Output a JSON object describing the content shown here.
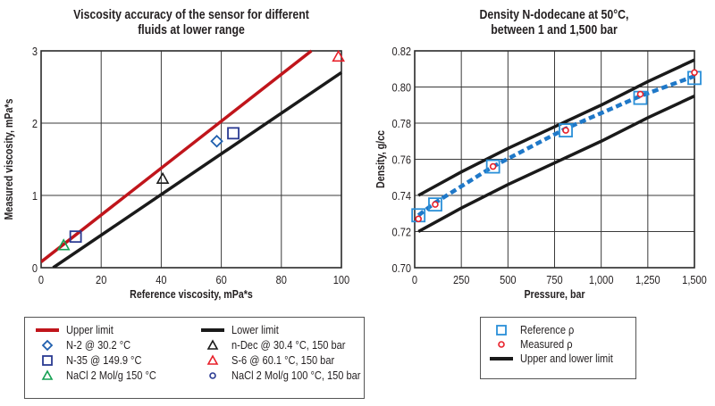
{
  "chart_data": [
    {
      "type": "scatter",
      "title": "Viscosity accuracy of the sensor for different fluids at lower range",
      "title_lines": [
        "Viscosity accuracy of the sensor for different",
        "fluids at lower range"
      ],
      "xlabel": "Reference viscosity, mPa*s",
      "ylabel": "Measured viscosity, mPa*s",
      "xlim": [
        0,
        100
      ],
      "ylim": [
        0,
        3
      ],
      "xticks": [
        "0",
        "20",
        "40",
        "60",
        "80",
        "100"
      ],
      "yticks": [
        "0",
        "1",
        "2",
        "3"
      ],
      "grid": true,
      "lines": [
        {
          "name": "Upper limit",
          "color": "#c0151b",
          "x": [
            0,
            90
          ],
          "y": [
            0.08,
            3.0
          ]
        },
        {
          "name": "Lower limit",
          "color": "#1a1a1a",
          "x": [
            4,
            100
          ],
          "y": [
            0.0,
            2.7
          ]
        }
      ],
      "series": [
        {
          "name": "N-2 @ 30.2 °C",
          "marker": "diamond",
          "color": "#1f5fae",
          "points": [
            [
              58.5,
              1.75
            ]
          ]
        },
        {
          "name": "N-35 @ 149.9 °C",
          "marker": "square",
          "color": "#2a3a92",
          "points": [
            [
              11.5,
              0.43
            ],
            [
              64,
              1.86
            ]
          ]
        },
        {
          "name": "NaCl 2 Mol/g 150 °C",
          "marker": "triangle",
          "color": "#14a052",
          "points": [
            [
              7.5,
              0.31
            ]
          ]
        },
        {
          "name": "n-Dec @ 30.4 °C, 150 bar",
          "marker": "triangle",
          "color": "#1a1a1a",
          "points": [
            [
              40.5,
              1.23
            ]
          ]
        },
        {
          "name": "S-6 @ 60.1 °C, 150 bar",
          "marker": "triangle",
          "color": "#e8202a",
          "points": [
            [
              99,
              2.92
            ]
          ]
        },
        {
          "name": "NaCl 2 Mol/g 100 °C, 150 bar",
          "marker": "circle",
          "color": "#2a3a92",
          "points": []
        }
      ],
      "legend": {
        "placement": "bottom",
        "items": [
          {
            "label": "Upper limit",
            "symbol": "line",
            "color": "#c0151b"
          },
          {
            "label": "N-2 @ 30.2 °C",
            "symbol": "diamond",
            "color": "#1f5fae"
          },
          {
            "label": "N-35 @ 149.9 °C",
            "symbol": "square",
            "color": "#2a3a92"
          },
          {
            "label": "NaCl 2 Mol/g 150 °C",
            "symbol": "triangle",
            "color": "#14a052"
          },
          {
            "label": "Lower limit",
            "symbol": "line",
            "color": "#1a1a1a"
          },
          {
            "label": "n-Dec @ 30.4 °C, 150 bar",
            "symbol": "triangle",
            "color": "#1a1a1a"
          },
          {
            "label": "S-6 @ 60.1 °C, 150 bar",
            "symbol": "triangle",
            "color": "#e8202a"
          },
          {
            "label": "NaCl 2 Mol/g 100 °C, 150 bar",
            "symbol": "circle",
            "color": "#2a3a92"
          }
        ]
      }
    },
    {
      "type": "line",
      "title": "Density N-dodecane at 50°C, between 1 and 1,500 bar",
      "title_lines": [
        "Density N-dodecane at 50°C,",
        "between 1 and 1,500 bar"
      ],
      "xlabel": "Pressure, bar",
      "ylabel": "Density, g/cc",
      "xlim": [
        0,
        1500
      ],
      "ylim": [
        0.7,
        0.82
      ],
      "xticks": [
        "0",
        "250",
        "500",
        "750",
        "1,000",
        "1,250",
        "1,500"
      ],
      "yticks": [
        "0.70",
        "0.72",
        "0.74",
        "0.76",
        "0.78",
        "0.80",
        "0.82"
      ],
      "grid": true,
      "series": [
        {
          "name": "Upper limit",
          "color": "#1a1a1a",
          "style": "solid",
          "x": [
            20,
            250,
            500,
            750,
            1000,
            1250,
            1500
          ],
          "y": [
            0.74,
            0.753,
            0.766,
            0.778,
            0.79,
            0.803,
            0.815
          ]
        },
        {
          "name": "Lower limit",
          "color": "#1a1a1a",
          "style": "solid",
          "x": [
            20,
            250,
            500,
            750,
            1000,
            1250,
            1500
          ],
          "y": [
            0.72,
            0.733,
            0.746,
            0.758,
            0.77,
            0.783,
            0.795
          ]
        },
        {
          "name": "Fit",
          "color": "#1f78c8",
          "style": "dashed",
          "x": [
            20,
            110,
            420,
            810,
            1210,
            1500
          ],
          "y": [
            0.729,
            0.736,
            0.756,
            0.777,
            0.795,
            0.806
          ]
        },
        {
          "name": "Reference ρ",
          "marker": "square",
          "color": "#2a8fd8",
          "x": [
            20,
            110,
            420,
            810,
            1210,
            1500
          ],
          "y": [
            0.729,
            0.735,
            0.756,
            0.776,
            0.794,
            0.805
          ]
        },
        {
          "name": "Measured ρ",
          "marker": "circle",
          "color": "#e8202a",
          "x": [
            20,
            110,
            420,
            810,
            1210,
            1500
          ],
          "y": [
            0.727,
            0.735,
            0.756,
            0.776,
            0.796,
            0.808
          ]
        }
      ],
      "legend": {
        "placement": "bottom",
        "items": [
          {
            "label": "Reference ρ",
            "symbol": "square",
            "color": "#2a8fd8"
          },
          {
            "label": "Measured ρ",
            "symbol": "circle",
            "color": "#e8202a"
          },
          {
            "label": "Upper and lower limit",
            "symbol": "line",
            "color": "#1a1a1a"
          }
        ]
      }
    }
  ]
}
